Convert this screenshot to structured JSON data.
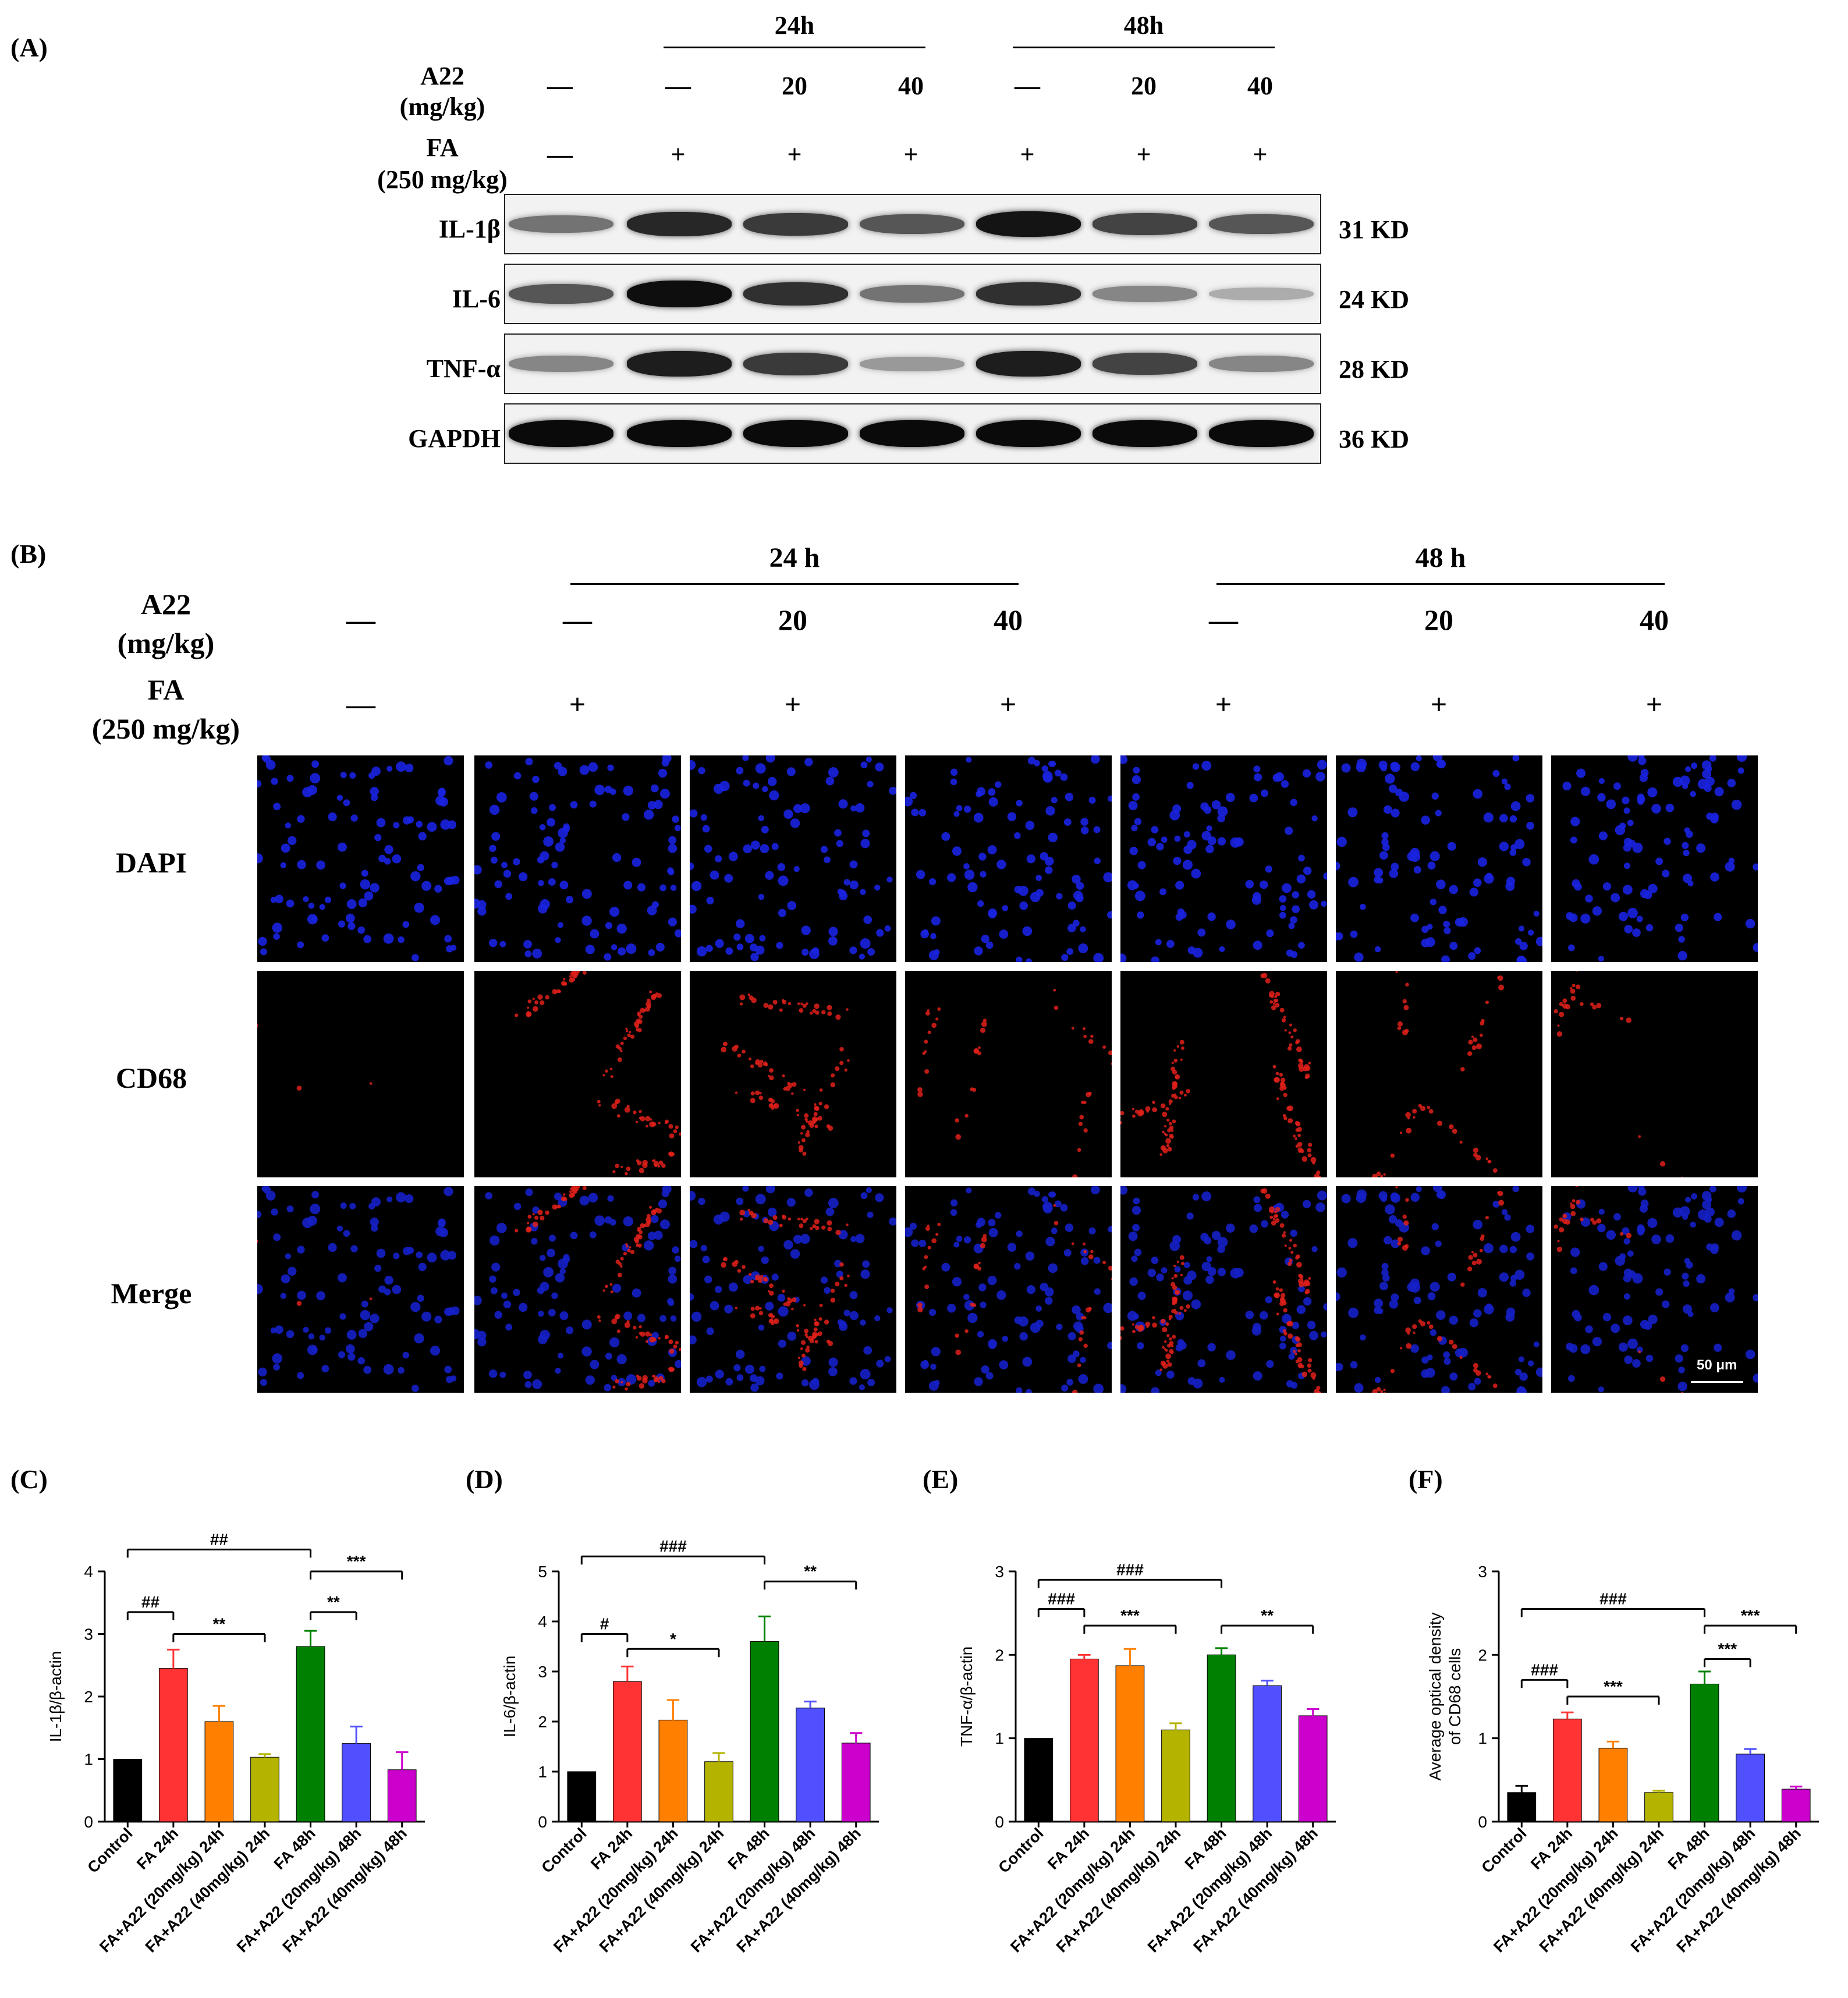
{
  "panelA": {
    "label": "(A)",
    "time_groups": [
      "24h",
      "48h"
    ],
    "a22_label_line1": "A22",
    "a22_label_line2": "(mg/kg)",
    "fa_label_line1": "FA",
    "fa_label_line2": "(250 mg/kg)",
    "a22_values": [
      "—",
      "—",
      "20",
      "40",
      "—",
      "20",
      "40"
    ],
    "fa_values": [
      "—",
      "+",
      "+",
      "+",
      "+",
      "+",
      "+"
    ],
    "proteins": [
      {
        "name": "IL-1β",
        "kd": "31 KD",
        "intensity": [
          0.45,
          0.85,
          0.75,
          0.6,
          0.95,
          0.7,
          0.6
        ]
      },
      {
        "name": "IL-6",
        "kd": "24 KD",
        "intensity": [
          0.6,
          0.98,
          0.8,
          0.45,
          0.8,
          0.35,
          0.15
        ]
      },
      {
        "name": "TNF-α",
        "kd": "28 KD",
        "intensity": [
          0.35,
          0.9,
          0.75,
          0.25,
          0.9,
          0.7,
          0.35
        ]
      },
      {
        "name": "GAPDH",
        "kd": "36 KD",
        "intensity": [
          1,
          1,
          1,
          1,
          1,
          1,
          1
        ]
      }
    ]
  },
  "panelB": {
    "label": "(B)",
    "time_groups": [
      "24 h",
      "48 h"
    ],
    "a22_label_line1": "A22",
    "a22_label_line2": "(mg/kg)",
    "fa_label_line1": "FA",
    "fa_label_line2": "(250 mg/kg)",
    "a22_values": [
      "—",
      "—",
      "20",
      "40",
      "—",
      "20",
      "40"
    ],
    "fa_values": [
      "—",
      "+",
      "+",
      "+",
      "+",
      "+",
      "+"
    ],
    "rows": [
      "DAPI",
      "CD68",
      "Merge"
    ],
    "red_levels": [
      0.02,
      0.9,
      0.65,
      0.3,
      0.95,
      0.35,
      0.25
    ],
    "scale_bar": "50 μm"
  },
  "chart_data": [
    {
      "label": "(C)",
      "type": "bar",
      "ylabel": "IL-1β/β-actin",
      "ylim": [
        0,
        4
      ],
      "yticks": [
        0,
        1,
        2,
        3,
        4
      ],
      "categories": [
        "Control",
        "FA 24h",
        "FA+A22 (20mg/kg) 24h",
        "FA+A22 (40mg/kg) 24h",
        "FA 48h",
        "FA+A22 (20mg/kg) 48h",
        "FA+A22 (40mg/kg) 48h"
      ],
      "values": [
        1.0,
        2.45,
        1.6,
        1.03,
        2.8,
        1.25,
        0.83
      ],
      "errors": [
        0,
        0.3,
        0.25,
        0.05,
        0.25,
        0.27,
        0.28
      ],
      "colors": [
        "#000000",
        "#ff3333",
        "#ff8000",
        "#b3b300",
        "#008000",
        "#5050ff",
        "#cc00cc"
      ],
      "brackets": [
        {
          "from": 0,
          "to": 4,
          "y": 4.35,
          "text": "##"
        },
        {
          "from": 0,
          "to": 1,
          "y": 3.35,
          "text": "##"
        },
        {
          "from": 1,
          "to": 3,
          "y": 3.0,
          "text": "**"
        },
        {
          "from": 4,
          "to": 5,
          "y": 3.35,
          "text": "**"
        },
        {
          "from": 4,
          "to": 6,
          "y": 4.0,
          "text": "***"
        }
      ]
    },
    {
      "label": "(D)",
      "type": "bar",
      "ylabel": "IL-6/β-actin",
      "ylim": [
        0,
        5
      ],
      "yticks": [
        0,
        1,
        2,
        3,
        4,
        5
      ],
      "categories": [
        "Control",
        "FA 24h",
        "FA+A22 (20mg/kg) 24h",
        "FA+A22 (40mg/kg) 24h",
        "FA 48h",
        "FA+A22 (20mg/kg) 48h",
        "FA+A22 (40mg/kg) 48h"
      ],
      "values": [
        1.0,
        2.8,
        2.03,
        1.2,
        3.6,
        2.27,
        1.57
      ],
      "errors": [
        0,
        0.3,
        0.4,
        0.17,
        0.5,
        0.13,
        0.2
      ],
      "colors": [
        "#000000",
        "#ff3333",
        "#ff8000",
        "#b3b300",
        "#008000",
        "#5050ff",
        "#cc00cc"
      ],
      "brackets": [
        {
          "from": 0,
          "to": 4,
          "y": 5.3,
          "text": "###"
        },
        {
          "from": 0,
          "to": 1,
          "y": 3.75,
          "text": "#"
        },
        {
          "from": 1,
          "to": 3,
          "y": 3.45,
          "text": "*"
        },
        {
          "from": 4,
          "to": 6,
          "y": 4.8,
          "text": "**"
        }
      ]
    },
    {
      "label": "(E)",
      "type": "bar",
      "ylabel": "TNF-α/β-actin",
      "ylim": [
        0,
        3
      ],
      "yticks": [
        0,
        1,
        2,
        3
      ],
      "categories": [
        "Control",
        "FA 24h",
        "FA+A22 (20mg/kg) 24h",
        "FA+A22 (40mg/kg) 24h",
        "FA 48h",
        "FA+A22 (20mg/kg) 48h",
        "FA+A22 (40mg/kg) 48h"
      ],
      "values": [
        1.0,
        1.95,
        1.87,
        1.1,
        2.0,
        1.63,
        1.27
      ],
      "errors": [
        0,
        0.05,
        0.2,
        0.08,
        0.08,
        0.06,
        0.08
      ],
      "colors": [
        "#000000",
        "#ff3333",
        "#ff8000",
        "#b3b300",
        "#008000",
        "#5050ff",
        "#cc00cc"
      ],
      "brackets": [
        {
          "from": 0,
          "to": 4,
          "y": 2.9,
          "text": "###"
        },
        {
          "from": 0,
          "to": 1,
          "y": 2.55,
          "text": "###"
        },
        {
          "from": 1,
          "to": 3,
          "y": 2.35,
          "text": "***"
        },
        {
          "from": 4,
          "to": 6,
          "y": 2.35,
          "text": "**"
        }
      ]
    },
    {
      "label": "(F)",
      "type": "bar",
      "ylabel_line1": "Average optical density",
      "ylabel_line2": "of CD68 cells",
      "ylim": [
        0,
        3
      ],
      "yticks": [
        0,
        1,
        2,
        3
      ],
      "categories": [
        "Control",
        "FA 24h",
        "FA+A22 (20mg/kg) 24h",
        "FA+A22 (40mg/kg) 24h",
        "FA 48h",
        "FA+A22 (20mg/kg) 48h",
        "FA+A22 (40mg/kg) 48h"
      ],
      "values": [
        0.35,
        1.23,
        0.88,
        0.35,
        1.65,
        0.81,
        0.39
      ],
      "errors": [
        0.08,
        0.08,
        0.08,
        0.02,
        0.15,
        0.06,
        0.03
      ],
      "colors": [
        "#000000",
        "#ff3333",
        "#ff8000",
        "#b3b300",
        "#008000",
        "#5050ff",
        "#cc00cc"
      ],
      "brackets": [
        {
          "from": 0,
          "to": 4,
          "y": 2.55,
          "text": "###"
        },
        {
          "from": 0,
          "to": 1,
          "y": 1.7,
          "text": "###"
        },
        {
          "from": 1,
          "to": 3,
          "y": 1.5,
          "text": "***"
        },
        {
          "from": 4,
          "to": 5,
          "y": 1.95,
          "text": "***"
        },
        {
          "from": 4,
          "to": 6,
          "y": 2.35,
          "text": "***"
        }
      ]
    }
  ]
}
